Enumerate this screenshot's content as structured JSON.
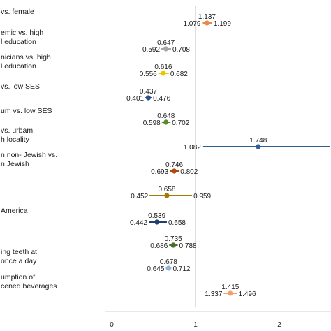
{
  "chart_data": {
    "type": "forest",
    "title": "",
    "xlabel": "",
    "ylabel": "",
    "xlim": [
      0,
      2.6
    ],
    "reference_line": 1,
    "x_ticks": [
      0,
      1,
      2
    ],
    "x_tick_labels": [
      "0",
      "1",
      "2"
    ],
    "rows": [
      {
        "label_lines": [
          "vs. female"
        ],
        "estimate": 1.137,
        "lower": 1.079,
        "upper": 1.199,
        "color": "#e8894a"
      },
      {
        "label_lines": [
          "emic vs. high",
          "l education"
        ],
        "estimate": 0.647,
        "lower": 0.592,
        "upper": 0.708,
        "color": "#a6a6a6"
      },
      {
        "label_lines": [
          "nicians vs. high",
          "l education"
        ],
        "estimate": 0.616,
        "lower": 0.556,
        "upper": 0.682,
        "color": "#f2c200"
      },
      {
        "label_lines": [
          "vs. low SES"
        ],
        "estimate": 0.437,
        "lower": 0.401,
        "upper": 0.476,
        "color": "#2e4f8c"
      },
      {
        "label_lines": [
          "um vs. low SES"
        ],
        "estimate": 0.648,
        "lower": 0.598,
        "upper": 0.702,
        "color": "#5a8a2e"
      },
      {
        "label_lines": [
          "vs. urbam",
          "h locality"
        ],
        "estimate": 1.748,
        "lower": 1.082,
        "upper": 2.6,
        "color": "#2f5f95"
      },
      {
        "label_lines": [
          "n non- Jewish vs.",
          "n Jewish"
        ],
        "estimate": 0.746,
        "lower": 0.693,
        "upper": 0.802,
        "color": "#b3480f"
      },
      {
        "label_lines": [],
        "estimate": 0.658,
        "lower": 0.452,
        "upper": 0.959,
        "color": "#a07c00"
      },
      {
        "label_lines": [
          "America"
        ],
        "estimate": 0.539,
        "lower": 0.442,
        "upper": 0.658,
        "color": "#1f3e6b"
      },
      {
        "label_lines": [],
        "estimate": 0.735,
        "lower": 0.686,
        "upper": 0.788,
        "color": "#4a6e22"
      },
      {
        "label_lines": [
          "ing teeth at",
          "once a day"
        ],
        "estimate": 0.678,
        "lower": 0.645,
        "upper": 0.712,
        "color": "#8fb3e0"
      },
      {
        "label_lines": [
          "umption of",
          "cened beverages"
        ],
        "estimate": 1.415,
        "lower": 1.337,
        "upper": 1.496,
        "color": "#f0a070"
      }
    ]
  }
}
